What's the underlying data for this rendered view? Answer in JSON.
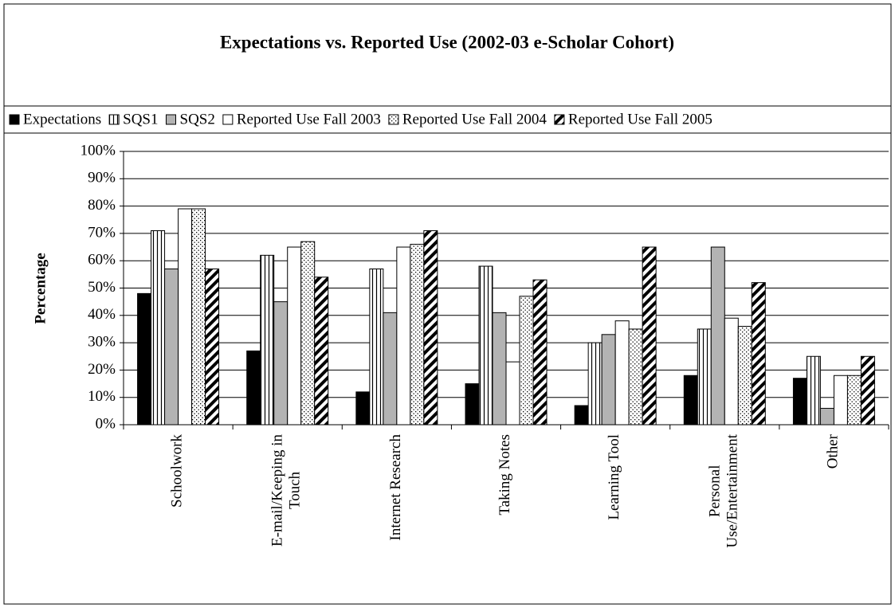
{
  "chart_data": {
    "type": "bar",
    "title": "Expectations vs. Reported Use (2002-03 e-Scholar Cohort)",
    "y_label": "Percentage",
    "categories": [
      "Schoolwork",
      "E-mail/Keeping in Touch",
      "Internet Research",
      "Taking Notes",
      "Learning Tool",
      "Personal Use/Entertainment",
      "Other"
    ],
    "series": [
      {
        "name": "Expectations",
        "color": "#000000",
        "pattern": "solid",
        "values": [
          48,
          27,
          12,
          15,
          7,
          18,
          17
        ]
      },
      {
        "name": "SQS1",
        "color": "#ffffff",
        "pattern": "vertical",
        "values": [
          71,
          62,
          57,
          58,
          30,
          35,
          25
        ]
      },
      {
        "name": "SQS2",
        "color": "#b3b3b3",
        "pattern": "solid",
        "values": [
          57,
          45,
          41,
          41,
          33,
          65,
          6
        ]
      },
      {
        "name": "Reported Use Fall 2003",
        "color": "#ffffff",
        "pattern": "solid",
        "values": [
          79,
          65,
          65,
          23,
          38,
          39,
          18
        ]
      },
      {
        "name": "Reported Use Fall 2004",
        "color": "#ffffff",
        "pattern": "dotted",
        "values": [
          79,
          67,
          66,
          47,
          35,
          36,
          18
        ]
      },
      {
        "name": "Reported Use Fall 2005",
        "color": "#ffffff",
        "pattern": "diagonal",
        "values": [
          57,
          54,
          71,
          53,
          65,
          52,
          25
        ]
      }
    ],
    "ylim": [
      0,
      100
    ],
    "yticks": [
      {
        "value": 0,
        "label": "0%"
      },
      {
        "value": 10,
        "label": "10%"
      },
      {
        "value": 20,
        "label": "20%"
      },
      {
        "value": 30,
        "label": "30%"
      },
      {
        "value": 40,
        "label": "40%"
      },
      {
        "value": 50,
        "label": "50%"
      },
      {
        "value": 60,
        "label": "60%"
      },
      {
        "value": 70,
        "label": "70%"
      },
      {
        "value": 80,
        "label": "80%"
      },
      {
        "value": 90,
        "label": "90%"
      },
      {
        "value": 100,
        "label": "100%"
      }
    ],
    "grid": true,
    "legend": "top"
  }
}
